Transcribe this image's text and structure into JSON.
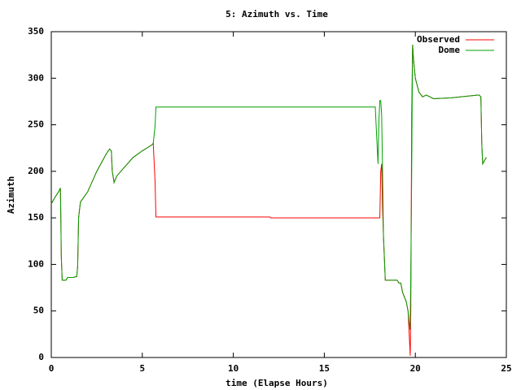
{
  "chart_data": {
    "type": "line",
    "title": "5: Azimuth vs. Time",
    "x_label": "time (Elapse Hours)",
    "y_label": "Azimuth",
    "xlim": [
      0,
      25
    ],
    "xticks": [
      0,
      5,
      10,
      15,
      20,
      25
    ],
    "ylim": [
      0,
      350
    ],
    "yticks": [
      0,
      50,
      100,
      150,
      200,
      250,
      300,
      350
    ],
    "legend": "top-right",
    "series": [
      {
        "name": "Observed",
        "color": "#ff0000",
        "x": [
          0,
          0.2,
          0.4,
          0.5,
          0.52,
          0.55,
          0.6,
          0.8,
          0.9,
          1.2,
          1.4,
          1.45,
          1.5,
          1.6,
          2,
          2.5,
          3,
          3.2,
          3.3,
          3.35,
          3.45,
          3.6,
          4,
          4.5,
          5,
          5.5,
          5.6,
          5.7,
          5.75,
          12,
          12.05,
          18.05,
          18.1,
          18.15,
          18.2,
          18.25,
          18.35,
          19,
          19.1,
          19.2,
          19.3,
          19.5,
          19.6,
          19.7,
          19.72,
          19.75,
          19.8,
          19.85,
          19.9,
          20,
          20.2,
          20.4,
          20.6,
          21,
          22,
          23,
          23.5,
          23.6,
          23.65,
          23.7,
          23.9
        ],
        "values": [
          165,
          172,
          178,
          182,
          157,
          108,
          83,
          83,
          86,
          86,
          87,
          98,
          150,
          167,
          178,
          200,
          218,
          224,
          222,
          200,
          188,
          195,
          204,
          215,
          222,
          228,
          230,
          190,
          151,
          151,
          150,
          150,
          200,
          208,
          160,
          130,
          83,
          83,
          80,
          80,
          70,
          60,
          50,
          10,
          2,
          50,
          260,
          336,
          320,
          300,
          285,
          280,
          282,
          278,
          279,
          281,
          282,
          280,
          230,
          208,
          215
        ]
      },
      {
        "name": "Dome",
        "color": "#00a000",
        "x": [
          0,
          0.2,
          0.4,
          0.5,
          0.52,
          0.55,
          0.6,
          0.8,
          0.9,
          1.2,
          1.4,
          1.45,
          1.5,
          1.6,
          2,
          2.5,
          3,
          3.2,
          3.3,
          3.35,
          3.45,
          3.6,
          4,
          4.5,
          5,
          5.5,
          5.6,
          5.7,
          5.75,
          17.8,
          17.85,
          17.95,
          18,
          18.05,
          18.1,
          18.15,
          18.2,
          18.25,
          18.35,
          19,
          19.1,
          19.2,
          19.3,
          19.5,
          19.6,
          19.7,
          19.72,
          19.75,
          19.8,
          19.85,
          19.9,
          20,
          20.2,
          20.4,
          20.6,
          21,
          22,
          23,
          23.5,
          23.6,
          23.65,
          23.7,
          23.9
        ],
        "values": [
          165,
          172,
          178,
          182,
          157,
          108,
          83,
          83,
          86,
          86,
          87,
          98,
          150,
          167,
          178,
          200,
          218,
          224,
          222,
          200,
          188,
          195,
          204,
          215,
          222,
          228,
          230,
          248,
          269,
          269,
          248,
          208,
          255,
          276,
          276,
          260,
          200,
          130,
          83,
          83,
          80,
          80,
          70,
          60,
          50,
          30,
          40,
          85,
          200,
          336,
          320,
          300,
          285,
          280,
          282,
          278,
          279,
          281,
          282,
          280,
          230,
          208,
          215
        ]
      }
    ]
  }
}
